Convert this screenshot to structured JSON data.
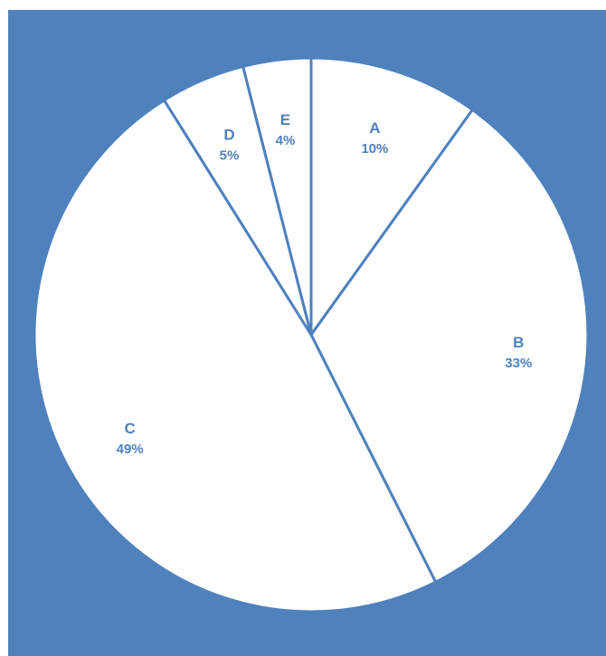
{
  "chart_data": {
    "type": "pie",
    "title": "",
    "categories": [
      "A",
      "B",
      "C",
      "D",
      "E"
    ],
    "values": [
      10,
      33,
      49,
      5,
      4
    ],
    "percent_labels": [
      "10%",
      "33%",
      "49%",
      "5%",
      "4%"
    ],
    "start_angle_deg": 0,
    "direction": "clockwise",
    "legend": "none"
  },
  "colors": {
    "background": "#4f81bd",
    "slice_fill": "#ffffff",
    "slice_border": "#4f81bd",
    "label_text": "#4f81bd"
  }
}
